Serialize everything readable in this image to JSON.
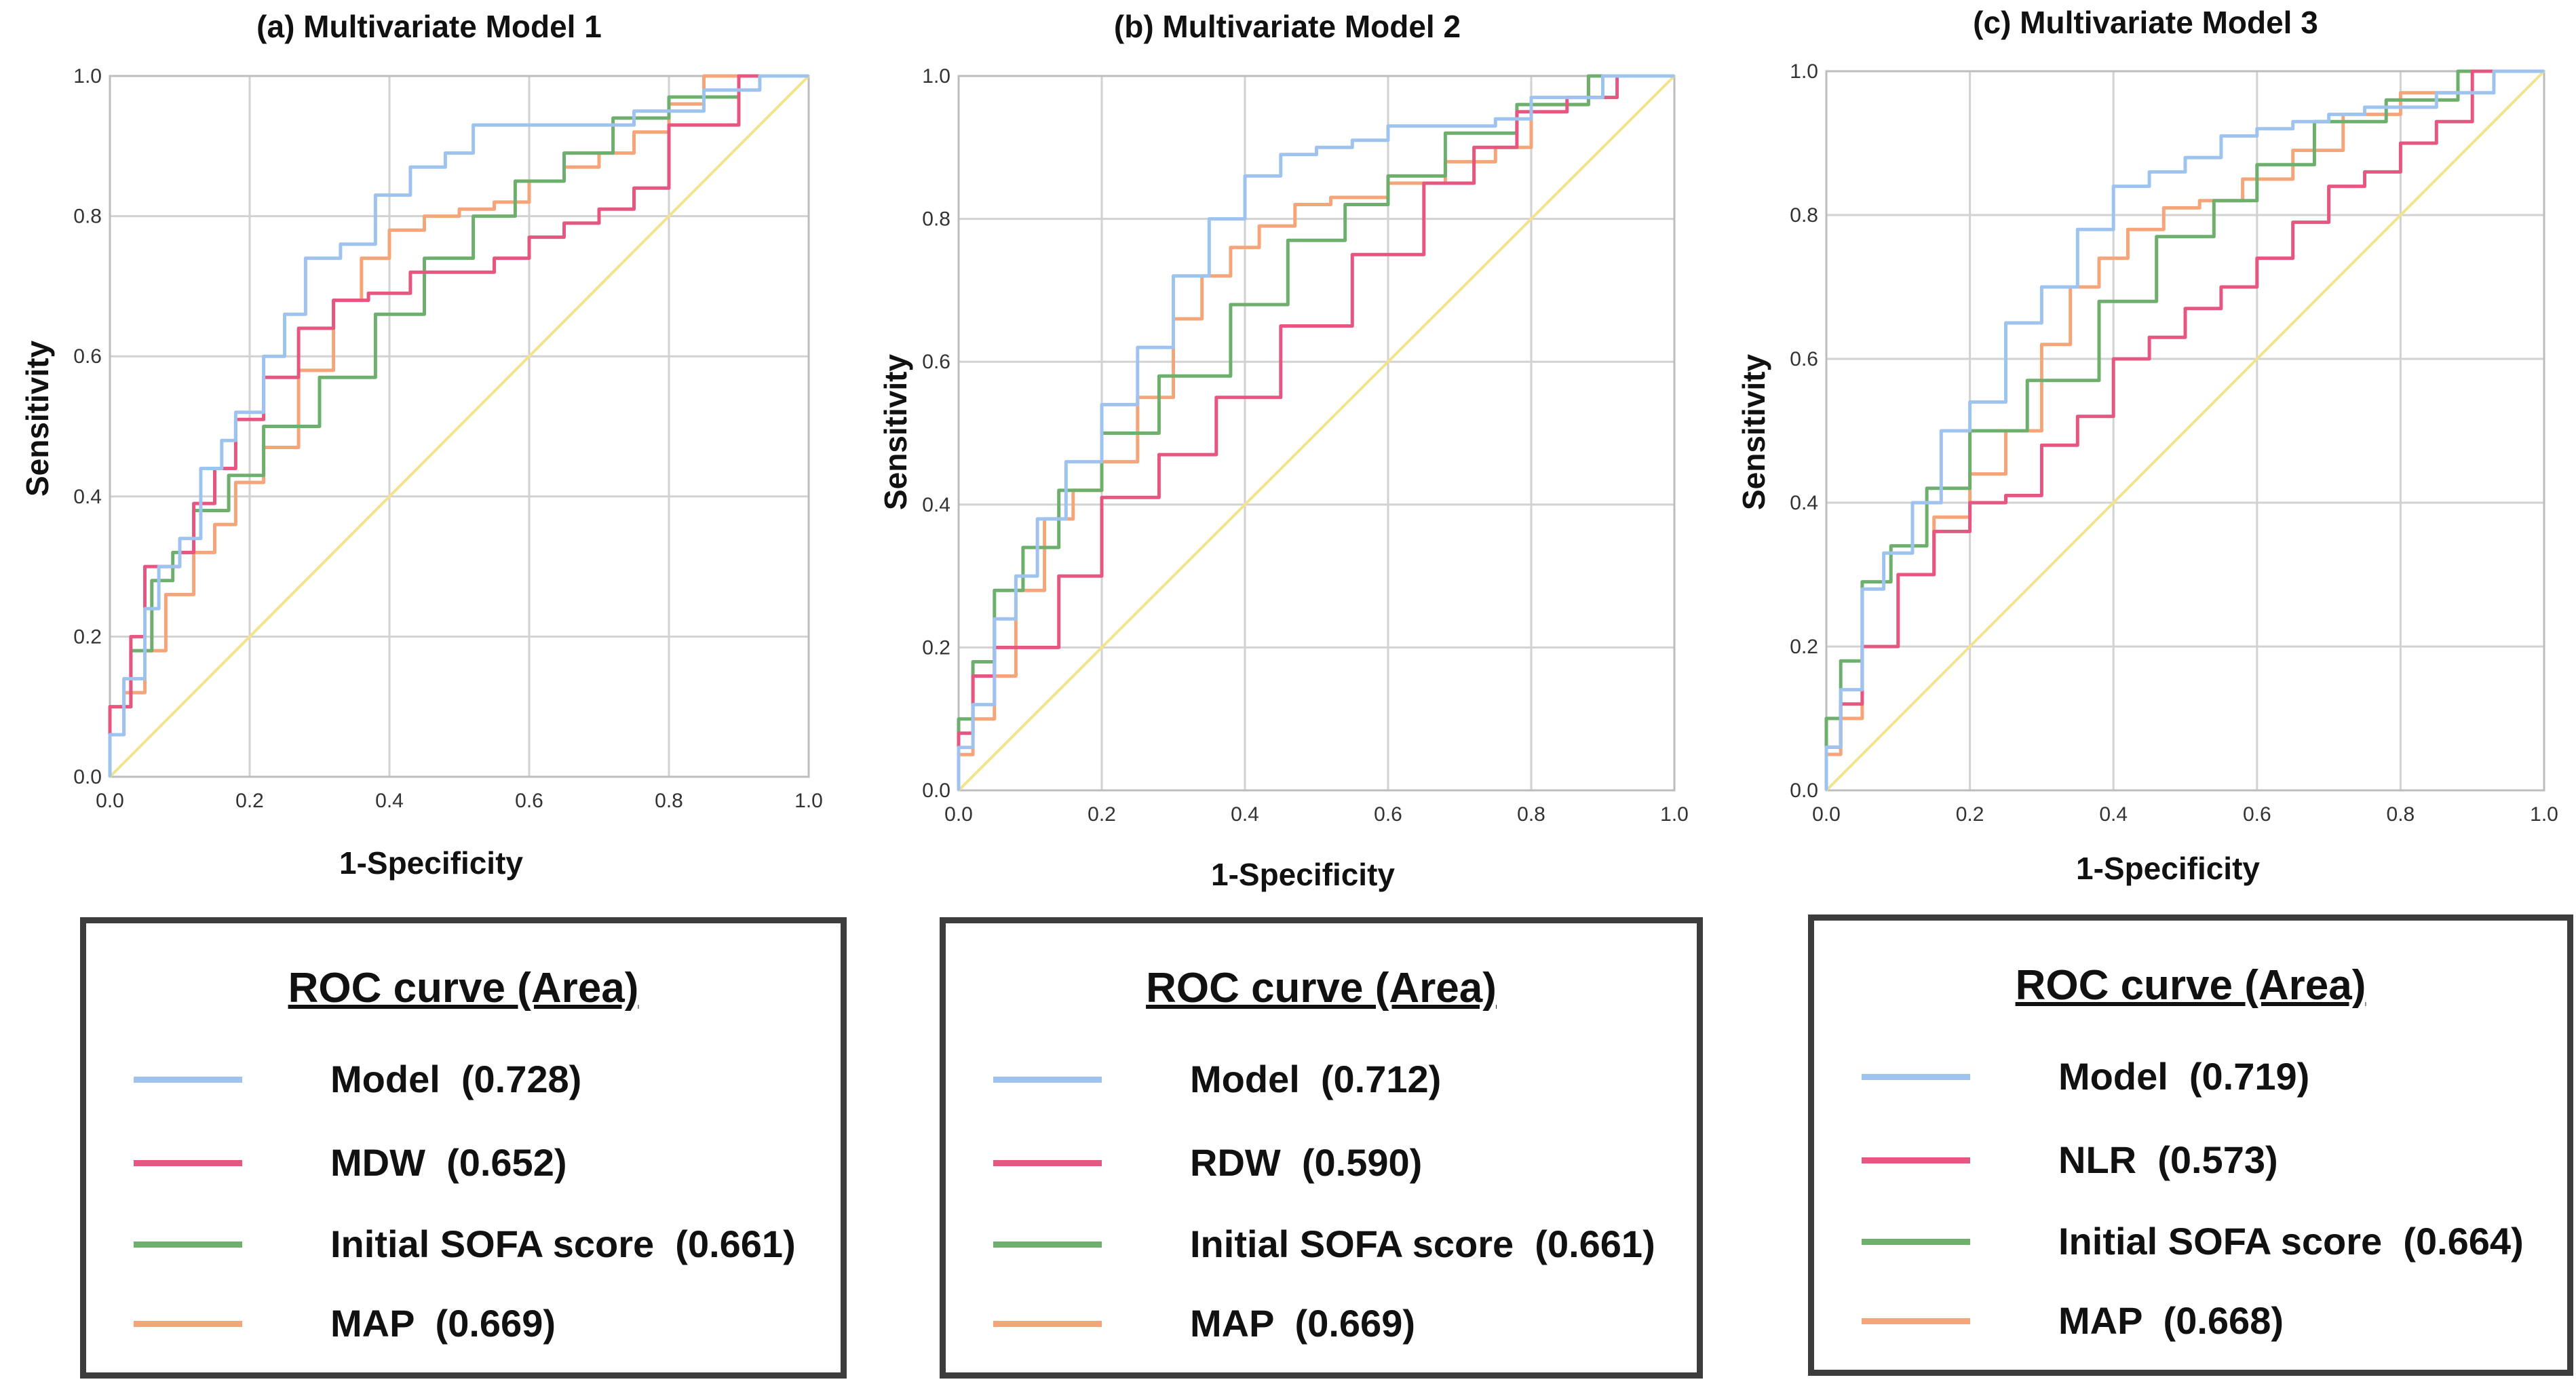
{
  "colors": {
    "model": "#9fc3ef",
    "second": "#e55780",
    "sofa": "#6eaf6e",
    "map": "#f5a57a",
    "reference": "#f2e48c",
    "grid": "#d2d2d2"
  },
  "chart_data": [
    {
      "type": "line",
      "title": "(a) Multivariate Model 1",
      "xlabel": "1-Specificity",
      "ylabel": "Sensitivity",
      "xlim": [
        0,
        1
      ],
      "ylim": [
        0,
        1
      ],
      "xticks": [
        "0.0",
        "0.2",
        "0.4",
        "0.6",
        "0.8",
        "1.0"
      ],
      "yticks": [
        "0.0",
        "0.2",
        "0.4",
        "0.6",
        "0.8",
        "1.0"
      ],
      "legend_title": "ROC curve (Area)",
      "series": [
        {
          "name": "Model",
          "area": "(0.728)",
          "legend_label": "Model  (0.728)",
          "color_key": "model",
          "points": [
            [
              0,
              0
            ],
            [
              0.02,
              0.06
            ],
            [
              0.05,
              0.14
            ],
            [
              0.07,
              0.24
            ],
            [
              0.1,
              0.3
            ],
            [
              0.13,
              0.34
            ],
            [
              0.16,
              0.44
            ],
            [
              0.18,
              0.48
            ],
            [
              0.22,
              0.52
            ],
            [
              0.25,
              0.6
            ],
            [
              0.28,
              0.66
            ],
            [
              0.33,
              0.74
            ],
            [
              0.38,
              0.76
            ],
            [
              0.43,
              0.83
            ],
            [
              0.48,
              0.87
            ],
            [
              0.52,
              0.89
            ],
            [
              0.55,
              0.93
            ],
            [
              0.65,
              0.93
            ],
            [
              0.75,
              0.93
            ],
            [
              0.85,
              0.95
            ],
            [
              0.93,
              0.98
            ],
            [
              1,
              1
            ]
          ]
        },
        {
          "name": "MDW",
          "area": "(0.652)",
          "legend_label": "MDW  (0.652)",
          "color_key": "second",
          "points": [
            [
              0,
              0
            ],
            [
              0.03,
              0.1
            ],
            [
              0.05,
              0.2
            ],
            [
              0.07,
              0.3
            ],
            [
              0.1,
              0.3
            ],
            [
              0.12,
              0.32
            ],
            [
              0.15,
              0.39
            ],
            [
              0.18,
              0.44
            ],
            [
              0.22,
              0.51
            ],
            [
              0.27,
              0.57
            ],
            [
              0.32,
              0.64
            ],
            [
              0.37,
              0.68
            ],
            [
              0.43,
              0.69
            ],
            [
              0.5,
              0.72
            ],
            [
              0.55,
              0.72
            ],
            [
              0.6,
              0.74
            ],
            [
              0.65,
              0.77
            ],
            [
              0.7,
              0.79
            ],
            [
              0.75,
              0.81
            ],
            [
              0.8,
              0.84
            ],
            [
              0.9,
              0.93
            ],
            [
              1,
              1
            ]
          ]
        },
        {
          "name": "Initial SOFA score",
          "area": "(0.661)",
          "legend_label": "Initial SOFA score  (0.661)",
          "color_key": "sofa",
          "points": [
            [
              0,
              0
            ],
            [
              0.03,
              0.1
            ],
            [
              0.06,
              0.18
            ],
            [
              0.09,
              0.28
            ],
            [
              0.12,
              0.32
            ],
            [
              0.17,
              0.38
            ],
            [
              0.22,
              0.43
            ],
            [
              0.3,
              0.5
            ],
            [
              0.38,
              0.57
            ],
            [
              0.45,
              0.66
            ],
            [
              0.52,
              0.74
            ],
            [
              0.58,
              0.8
            ],
            [
              0.65,
              0.85
            ],
            [
              0.72,
              0.89
            ],
            [
              0.8,
              0.94
            ],
            [
              0.9,
              0.97
            ],
            [
              1,
              1
            ]
          ]
        },
        {
          "name": "MAP",
          "area": "(0.669)",
          "legend_label": "MAP  (0.669)",
          "color_key": "map",
          "points": [
            [
              0,
              0
            ],
            [
              0.02,
              0.06
            ],
            [
              0.05,
              0.12
            ],
            [
              0.08,
              0.18
            ],
            [
              0.12,
              0.26
            ],
            [
              0.15,
              0.32
            ],
            [
              0.18,
              0.36
            ],
            [
              0.22,
              0.42
            ],
            [
              0.27,
              0.47
            ],
            [
              0.32,
              0.58
            ],
            [
              0.36,
              0.68
            ],
            [
              0.4,
              0.74
            ],
            [
              0.45,
              0.78
            ],
            [
              0.5,
              0.8
            ],
            [
              0.55,
              0.81
            ],
            [
              0.6,
              0.82
            ],
            [
              0.65,
              0.85
            ],
            [
              0.7,
              0.87
            ],
            [
              0.75,
              0.89
            ],
            [
              0.8,
              0.92
            ],
            [
              0.85,
              0.96
            ],
            [
              1,
              1
            ]
          ]
        }
      ]
    },
    {
      "type": "line",
      "title": "(b) Multivariate Model 2",
      "xlabel": "1-Specificity",
      "ylabel": "Sensitivity",
      "xlim": [
        0,
        1
      ],
      "ylim": [
        0,
        1
      ],
      "xticks": [
        "0.0",
        "0.2",
        "0.4",
        "0.6",
        "0.8",
        "1.0"
      ],
      "yticks": [
        "0.0",
        "0.2",
        "0.4",
        "0.6",
        "0.8",
        "1.0"
      ],
      "legend_title": "ROC curve (Area)",
      "series": [
        {
          "name": "Model",
          "area": "(0.712)",
          "legend_label": "Model  (0.712)",
          "color_key": "model",
          "points": [
            [
              0,
              0
            ],
            [
              0.02,
              0.06
            ],
            [
              0.05,
              0.12
            ],
            [
              0.08,
              0.24
            ],
            [
              0.11,
              0.3
            ],
            [
              0.15,
              0.38
            ],
            [
              0.2,
              0.46
            ],
            [
              0.25,
              0.54
            ],
            [
              0.3,
              0.62
            ],
            [
              0.35,
              0.72
            ],
            [
              0.4,
              0.8
            ],
            [
              0.45,
              0.86
            ],
            [
              0.5,
              0.89
            ],
            [
              0.55,
              0.9
            ],
            [
              0.6,
              0.91
            ],
            [
              0.65,
              0.93
            ],
            [
              0.75,
              0.93
            ],
            [
              0.8,
              0.94
            ],
            [
              0.9,
              0.97
            ],
            [
              1,
              1
            ]
          ]
        },
        {
          "name": "RDW",
          "area": "(0.590)",
          "legend_label": "RDW  (0.590)",
          "color_key": "second",
          "points": [
            [
              0,
              0
            ],
            [
              0.02,
              0.08
            ],
            [
              0.05,
              0.16
            ],
            [
              0.08,
              0.2
            ],
            [
              0.14,
              0.2
            ],
            [
              0.2,
              0.3
            ],
            [
              0.28,
              0.41
            ],
            [
              0.36,
              0.47
            ],
            [
              0.45,
              0.55
            ],
            [
              0.55,
              0.65
            ],
            [
              0.65,
              0.75
            ],
            [
              0.72,
              0.85
            ],
            [
              0.78,
              0.9
            ],
            [
              0.85,
              0.95
            ],
            [
              0.92,
              0.97
            ],
            [
              1,
              1
            ]
          ]
        },
        {
          "name": "Initial SOFA score",
          "area": "(0.661)",
          "legend_label": "Initial SOFA score  (0.661)",
          "color_key": "sofa",
          "points": [
            [
              0,
              0
            ],
            [
              0.02,
              0.1
            ],
            [
              0.05,
              0.18
            ],
            [
              0.09,
              0.28
            ],
            [
              0.14,
              0.34
            ],
            [
              0.2,
              0.42
            ],
            [
              0.28,
              0.5
            ],
            [
              0.38,
              0.58
            ],
            [
              0.46,
              0.68
            ],
            [
              0.54,
              0.77
            ],
            [
              0.6,
              0.82
            ],
            [
              0.68,
              0.86
            ],
            [
              0.78,
              0.92
            ],
            [
              0.88,
              0.96
            ],
            [
              1,
              1
            ]
          ]
        },
        {
          "name": "MAP",
          "area": "(0.669)",
          "legend_label": "MAP  (0.669)",
          "color_key": "map",
          "points": [
            [
              0,
              0
            ],
            [
              0.02,
              0.05
            ],
            [
              0.05,
              0.1
            ],
            [
              0.08,
              0.16
            ],
            [
              0.12,
              0.28
            ],
            [
              0.16,
              0.38
            ],
            [
              0.2,
              0.42
            ],
            [
              0.25,
              0.46
            ],
            [
              0.3,
              0.55
            ],
            [
              0.34,
              0.66
            ],
            [
              0.38,
              0.72
            ],
            [
              0.42,
              0.76
            ],
            [
              0.47,
              0.79
            ],
            [
              0.52,
              0.82
            ],
            [
              0.6,
              0.83
            ],
            [
              0.68,
              0.85
            ],
            [
              0.75,
              0.88
            ],
            [
              0.8,
              0.9
            ],
            [
              0.88,
              0.96
            ],
            [
              1,
              1
            ]
          ]
        }
      ]
    },
    {
      "type": "line",
      "title": "(c) Multivariate Model 3",
      "xlabel": "1-Specificity",
      "ylabel": "Sensitivity",
      "xlim": [
        0,
        1
      ],
      "ylim": [
        0,
        1
      ],
      "xticks": [
        "0.0",
        "0.2",
        "0.4",
        "0.6",
        "0.8",
        "1.0"
      ],
      "yticks": [
        "0.0",
        "0.2",
        "0.4",
        "0.6",
        "0.8",
        "1.0"
      ],
      "legend_title": "ROC curve (Area)",
      "series": [
        {
          "name": "Model",
          "area": "(0.719)",
          "legend_label": "Model  (0.719)",
          "color_key": "model",
          "points": [
            [
              0,
              0
            ],
            [
              0.02,
              0.06
            ],
            [
              0.05,
              0.14
            ],
            [
              0.08,
              0.28
            ],
            [
              0.12,
              0.33
            ],
            [
              0.16,
              0.4
            ],
            [
              0.2,
              0.5
            ],
            [
              0.25,
              0.54
            ],
            [
              0.3,
              0.65
            ],
            [
              0.35,
              0.7
            ],
            [
              0.4,
              0.78
            ],
            [
              0.45,
              0.84
            ],
            [
              0.5,
              0.86
            ],
            [
              0.55,
              0.88
            ],
            [
              0.6,
              0.91
            ],
            [
              0.65,
              0.92
            ],
            [
              0.7,
              0.93
            ],
            [
              0.75,
              0.94
            ],
            [
              0.85,
              0.95
            ],
            [
              0.93,
              0.97
            ],
            [
              1,
              1
            ]
          ]
        },
        {
          "name": "NLR",
          "area": "(0.573)",
          "legend_label": "NLR  (0.573)",
          "color_key": "second",
          "points": [
            [
              0,
              0
            ],
            [
              0.02,
              0.06
            ],
            [
              0.05,
              0.12
            ],
            [
              0.1,
              0.2
            ],
            [
              0.15,
              0.3
            ],
            [
              0.2,
              0.36
            ],
            [
              0.25,
              0.4
            ],
            [
              0.3,
              0.41
            ],
            [
              0.35,
              0.48
            ],
            [
              0.4,
              0.52
            ],
            [
              0.45,
              0.6
            ],
            [
              0.5,
              0.63
            ],
            [
              0.55,
              0.67
            ],
            [
              0.6,
              0.7
            ],
            [
              0.65,
              0.74
            ],
            [
              0.7,
              0.79
            ],
            [
              0.75,
              0.84
            ],
            [
              0.8,
              0.86
            ],
            [
              0.85,
              0.9
            ],
            [
              0.9,
              0.93
            ],
            [
              1,
              1
            ]
          ]
        },
        {
          "name": "Initial SOFA score",
          "area": "(0.664)",
          "legend_label": "Initial SOFA score  (0.664)",
          "color_key": "sofa",
          "points": [
            [
              0,
              0
            ],
            [
              0.02,
              0.1
            ],
            [
              0.05,
              0.18
            ],
            [
              0.09,
              0.29
            ],
            [
              0.14,
              0.34
            ],
            [
              0.2,
              0.42
            ],
            [
              0.28,
              0.5
            ],
            [
              0.38,
              0.57
            ],
            [
              0.46,
              0.68
            ],
            [
              0.54,
              0.77
            ],
            [
              0.6,
              0.82
            ],
            [
              0.68,
              0.87
            ],
            [
              0.78,
              0.93
            ],
            [
              0.88,
              0.96
            ],
            [
              1,
              1
            ]
          ]
        },
        {
          "name": "MAP",
          "area": "(0.668)",
          "legend_label": "MAP  (0.668)",
          "color_key": "map",
          "points": [
            [
              0,
              0
            ],
            [
              0.02,
              0.05
            ],
            [
              0.05,
              0.1
            ],
            [
              0.1,
              0.2
            ],
            [
              0.15,
              0.3
            ],
            [
              0.2,
              0.38
            ],
            [
              0.25,
              0.44
            ],
            [
              0.3,
              0.5
            ],
            [
              0.34,
              0.62
            ],
            [
              0.38,
              0.7
            ],
            [
              0.42,
              0.74
            ],
            [
              0.47,
              0.78
            ],
            [
              0.52,
              0.81
            ],
            [
              0.58,
              0.82
            ],
            [
              0.65,
              0.85
            ],
            [
              0.72,
              0.89
            ],
            [
              0.8,
              0.94
            ],
            [
              0.88,
              0.97
            ],
            [
              1,
              1
            ]
          ]
        }
      ]
    }
  ]
}
